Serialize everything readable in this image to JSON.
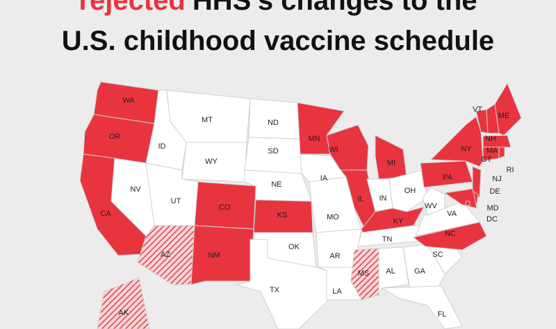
{
  "title": {
    "highlight": "rejected",
    "rest": "HHS’s changes to the",
    "line2": "U.S. childhood vaccine schedule"
  },
  "states": [
    {
      "label": "WA",
      "color": "#e8343f"
    },
    {
      "label": "OR",
      "color": "#e8343f"
    },
    {
      "label": "CA",
      "color": "#e8343f"
    },
    {
      "label": "ID",
      "color": "#ffffff"
    },
    {
      "label": "NV",
      "color": "#ffffff"
    },
    {
      "label": "MT",
      "color": "#ffffff"
    },
    {
      "label": "WY",
      "color": "#ffffff"
    },
    {
      "label": "UT",
      "color": "#ffffff"
    },
    {
      "label": "AZ",
      "color": "#e8343f",
      "hatched": true
    },
    {
      "label": "CO",
      "color": "#e8343f"
    },
    {
      "label": "NM",
      "color": "#e8343f"
    },
    {
      "label": "ND",
      "color": "#ffffff"
    },
    {
      "label": "SD",
      "color": "#ffffff"
    },
    {
      "label": "NE",
      "color": "#ffffff"
    },
    {
      "label": "KS",
      "color": "#e8343f"
    },
    {
      "label": "OK",
      "color": "#ffffff"
    },
    {
      "label": "TX",
      "color": "#ffffff"
    },
    {
      "label": "MN",
      "color": "#e8343f"
    },
    {
      "label": "IA",
      "color": "#ffffff"
    },
    {
      "label": "MO",
      "color": "#ffffff"
    },
    {
      "label": "AR",
      "color": "#ffffff"
    },
    {
      "label": "LA",
      "color": "#ffffff"
    },
    {
      "label": "WI",
      "color": "#e8343f"
    },
    {
      "label": "IL",
      "color": "#e8343f"
    },
    {
      "label": "MI",
      "color": "#e8343f"
    },
    {
      "label": "IN",
      "color": "#ffffff"
    },
    {
      "label": "OH",
      "color": "#ffffff"
    },
    {
      "label": "KY",
      "color": "#e8343f"
    },
    {
      "label": "TN",
      "color": "#ffffff"
    },
    {
      "label": "MS",
      "color": "#e8343f",
      "hatched": true
    },
    {
      "label": "AL",
      "color": "#ffffff"
    },
    {
      "label": "GA",
      "color": "#ffffff"
    },
    {
      "label": "FL",
      "color": "#ffffff"
    },
    {
      "label": "SC",
      "color": "#ffffff"
    },
    {
      "label": "NC",
      "color": "#e8343f"
    },
    {
      "label": "VA",
      "color": "#ffffff"
    },
    {
      "label": "WV",
      "color": "#ffffff"
    },
    {
      "label": "PA",
      "color": "#e8343f"
    },
    {
      "label": "NY",
      "color": "#e8343f"
    },
    {
      "label": "VT",
      "color": "#e8343f"
    },
    {
      "label": "NH",
      "color": "#e8343f"
    },
    {
      "label": "ME",
      "color": "#e8343f"
    },
    {
      "label": "MA",
      "color": "#e8343f"
    },
    {
      "label": "CT",
      "color": "#e8343f"
    },
    {
      "label": "RI",
      "color": "#e8343f"
    },
    {
      "label": "NJ",
      "color": "#e8343f"
    },
    {
      "label": "DE",
      "color": "#e8343f"
    },
    {
      "label": "MD",
      "color": "#e8343f"
    },
    {
      "label": "DC",
      "color": "#e8343f"
    },
    {
      "label": "AK",
      "color": "#e8343f",
      "hatched": true
    }
  ]
}
